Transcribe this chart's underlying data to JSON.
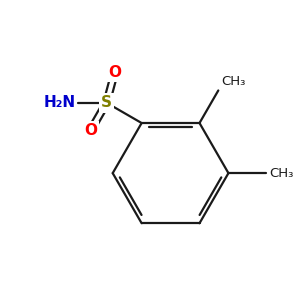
{
  "bg_color": "#ffffff",
  "bond_color": "#1a1a1a",
  "sulfur_color": "#808000",
  "oxygen_color": "#ff0000",
  "nitrogen_color": "#0000cc",
  "carbon_color": "#1a1a1a",
  "sulfonamide_label": "S",
  "o1_label": "O",
  "o2_label": "O",
  "nh2_label": "H₂N",
  "ch3_1_label": "CH₃",
  "ch3_2_label": "CH₃",
  "figsize": [
    3.0,
    3.0
  ],
  "dpi": 100
}
